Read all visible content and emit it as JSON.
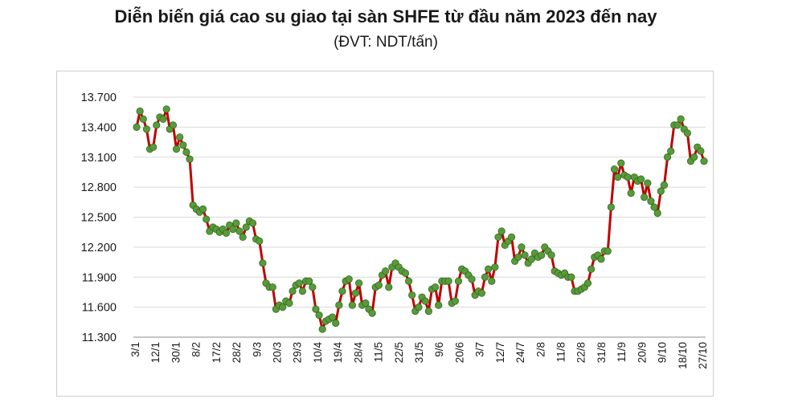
{
  "chart_data": {
    "type": "line",
    "title": "Diễn biến giá cao su giao tại sàn SHFE từ đầu năm 2023 đến nay",
    "subtitle": "(ĐVT: NDT/tấn)",
    "xlabel": "",
    "ylabel": "",
    "ylim": [
      11300,
      13700
    ],
    "yticks": [
      11300,
      11600,
      11900,
      12200,
      12500,
      12800,
      13100,
      13400,
      13700
    ],
    "ytick_labels": [
      "11.300",
      "11.600",
      "11.900",
      "12.200",
      "12.500",
      "12.800",
      "13.100",
      "13.400",
      "13.700"
    ],
    "xtick_labels": [
      "3/1",
      "12/1",
      "30/1",
      "8/2",
      "17/2",
      "28/2",
      "9/3",
      "20/3",
      "29/3",
      "10/4",
      "19/4",
      "28/4",
      "11/5",
      "22/5",
      "31/5",
      "9/6",
      "20/6",
      "3/7",
      "12/7",
      "24/7",
      "2/8",
      "11/8",
      "22/8",
      "31/8",
      "11/9",
      "20/9",
      "9/10",
      "18/10",
      "27/10"
    ],
    "grid": "horizontal",
    "line_color": "#c00000",
    "marker_color": "#5a9a3a",
    "marker_edge": "#2e6b1f",
    "series": [
      {
        "values": [
          13400,
          13560,
          13480,
          13380,
          13180,
          13200,
          13420,
          13500,
          13480,
          13580,
          13380,
          13420,
          13180,
          13300,
          13220,
          13150,
          13080,
          12620,
          12580,
          12550,
          12580,
          12480,
          12360,
          12400,
          12380,
          12350,
          12380,
          12340,
          12420,
          12380,
          12440,
          12360,
          12300,
          12400,
          12460,
          12440,
          12280,
          12260,
          12040,
          11840,
          11800,
          11800,
          11580,
          11620,
          11600,
          11660,
          11640,
          11760,
          11820,
          11840,
          11760,
          11860,
          11860,
          11800,
          11580,
          11520,
          11380,
          11460,
          11480,
          11500,
          11440,
          11620,
          11760,
          11860,
          11880,
          11620,
          11740,
          11840,
          11620,
          11640,
          11580,
          11540,
          11800,
          11820,
          11920,
          11960,
          11800,
          12000,
          12040,
          12000,
          11960,
          11940,
          11860,
          11720,
          11560,
          11600,
          11700,
          11660,
          11560,
          11780,
          11800,
          11620,
          11860,
          11860,
          11860,
          11640,
          11660,
          11860,
          11980,
          11960,
          11920,
          11880,
          11720,
          11760,
          11740,
          11900,
          11980,
          11860,
          12000,
          12300,
          12360,
          12220,
          12260,
          12300,
          12060,
          12100,
          12200,
          12120,
          12040,
          12080,
          12140,
          12100,
          12120,
          12200,
          12160,
          12120,
          11960,
          11940,
          11920,
          11940,
          11900,
          11900,
          11760,
          11760,
          11780,
          11800,
          11840,
          11980,
          12100,
          12120,
          12080,
          12160,
          12160,
          12600,
          12980,
          12900,
          13040,
          12920,
          12900,
          12740,
          12900,
          12860,
          12880,
          12700,
          12840,
          12660,
          12600,
          12540,
          12760,
          12820,
          13100,
          13160,
          13420,
          13420,
          13480,
          13380,
          13340,
          13060,
          13100,
          13200,
          13160,
          13060
        ]
      }
    ]
  }
}
